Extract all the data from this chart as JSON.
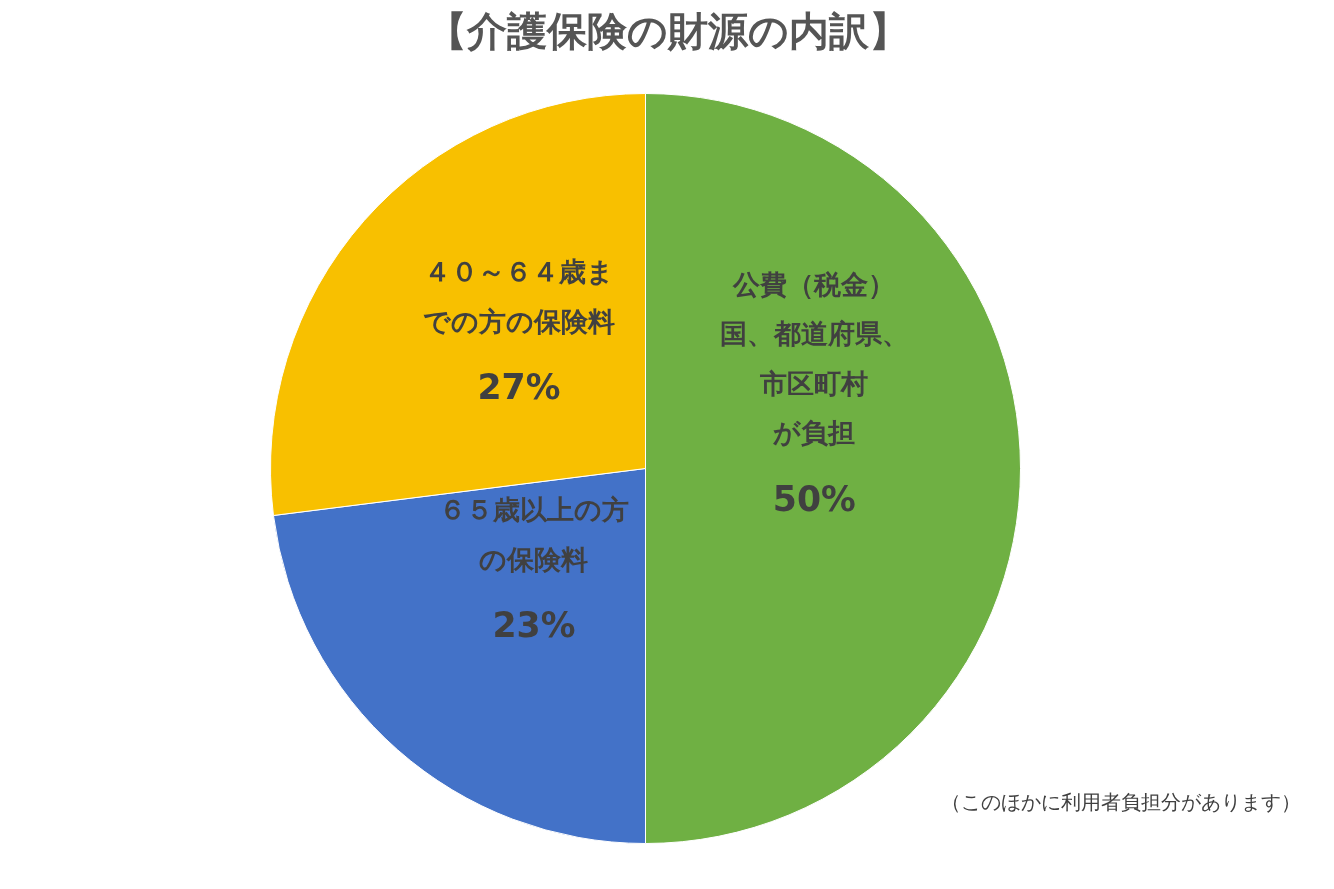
{
  "chart_data": {
    "type": "pie",
    "title": "【介護保険の財源の内訳】",
    "categories": [
      "公費（税金）国、都道府県、市区町村が負担",
      "６５歳以上の方の保険料",
      "４０～６４歳までの方の保険料"
    ],
    "values": [
      50,
      23,
      27
    ],
    "value_labels": [
      "50%",
      "23%",
      "27%"
    ],
    "colors": [
      "#6fb043",
      "#4372c8",
      "#f8c000"
    ],
    "annotations": [
      "（このほかに利用者負担分があります）"
    ]
  }
}
